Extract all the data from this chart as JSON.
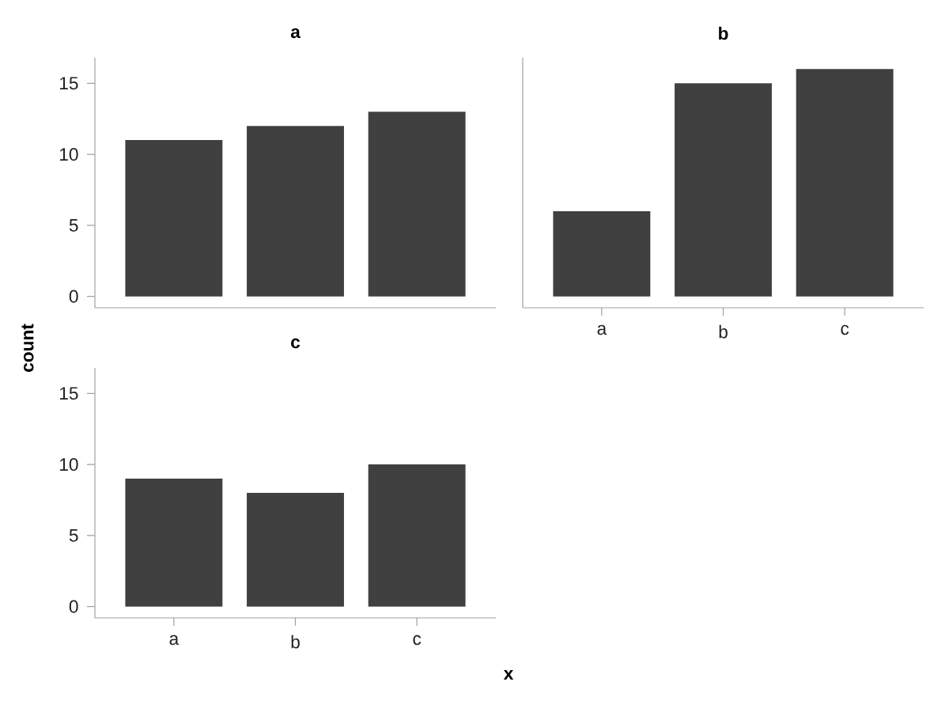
{
  "chart_data": [
    {
      "type": "bar",
      "title": "a",
      "categories": [
        null,
        null,
        null
      ],
      "values": [
        11,
        12,
        13
      ],
      "color": "#404040",
      "ylim": [
        -0.8,
        16.8
      ],
      "yticks": [
        0,
        5,
        10,
        15
      ],
      "tick_labels": "y",
      "ylabel": "count"
    },
    {
      "type": "bar",
      "title": "b",
      "categories": [
        "a",
        "b",
        "c"
      ],
      "values": [
        6,
        15,
        16
      ],
      "color": "#404040",
      "ylim": [
        -0.8,
        16.8
      ],
      "yticks": [
        0,
        5,
        10,
        15
      ],
      "tick_labels": "x"
    },
    {
      "type": "bar",
      "title": "c",
      "categories": [
        "a",
        "b",
        "c"
      ],
      "values": [
        9,
        8,
        10
      ],
      "color": "#404040",
      "ylim": [
        -0.8,
        16.8
      ],
      "yticks": [
        0,
        5,
        10,
        15
      ],
      "xlabel": "x"
    }
  ]
}
